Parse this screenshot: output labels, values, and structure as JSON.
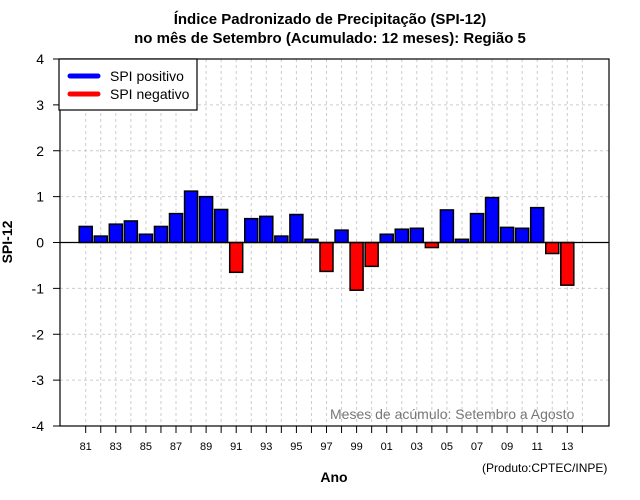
{
  "chart_data": {
    "type": "bar",
    "title": "Índice Padronizado de Precipitação (SPI-12)",
    "subtitle": "no mês de Setembro (Acumulado: 12 meses): Região 5",
    "xlabel": "Ano",
    "ylabel": "SPI-12",
    "ylim": [
      -4,
      4
    ],
    "yticks": [
      "-4",
      "-3",
      "-2",
      "-1",
      "0",
      "1",
      "2",
      "3",
      "4"
    ],
    "ytick_values": [
      -4,
      -3,
      -2,
      -1,
      0,
      1,
      2,
      3,
      4
    ],
    "x_range": [
      1980,
      2014
    ],
    "xtick_labels": [
      "81",
      "83",
      "85",
      "87",
      "89",
      "91",
      "93",
      "95",
      "97",
      "99",
      "01",
      "03",
      "05",
      "07",
      "09",
      "11",
      "13"
    ],
    "xtick_years": [
      1981,
      1983,
      1985,
      1987,
      1989,
      1991,
      1993,
      1995,
      1997,
      1999,
      2001,
      2003,
      2005,
      2007,
      2009,
      2011,
      2013
    ],
    "grid": true,
    "categories": [
      1981,
      1982,
      1983,
      1984,
      1985,
      1986,
      1987,
      1988,
      1989,
      1990,
      1991,
      1992,
      1993,
      1994,
      1995,
      1996,
      1997,
      1998,
      1999,
      2000,
      2001,
      2002,
      2003,
      2004,
      2005,
      2006,
      2007,
      2008,
      2009,
      2010,
      2011,
      2012,
      2013
    ],
    "values": [
      0.35,
      0.14,
      0.4,
      0.47,
      0.18,
      0.35,
      0.63,
      1.12,
      1.0,
      0.72,
      -0.65,
      0.52,
      0.57,
      0.14,
      0.61,
      0.07,
      -0.63,
      0.27,
      -1.04,
      -0.52,
      0.18,
      0.29,
      0.31,
      -0.11,
      0.71,
      0.07,
      0.63,
      0.98,
      0.33,
      0.31,
      0.76,
      -0.24,
      -0.93
    ],
    "legend": {
      "placement": "top-left",
      "entries": [
        {
          "label": "SPI positivo",
          "color": "#0000ff"
        },
        {
          "label": "SPI negativo",
          "color": "#ff0000"
        }
      ]
    },
    "colors": {
      "positive": "#0000ff",
      "negative": "#ff0000"
    },
    "annotation": "Meses de acúmulo: Setembro a Agosto",
    "credit": "(Produto:CPTEC/INPE)"
  }
}
